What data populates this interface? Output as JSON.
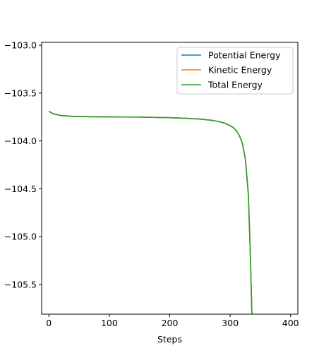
{
  "chart_data": {
    "type": "line",
    "title": "",
    "xlabel": "Steps",
    "ylabel": "",
    "xlim": [
      -12,
      412
    ],
    "ylim": [
      -105.81,
      -102.97
    ],
    "xticks": [
      0,
      100,
      200,
      300,
      400
    ],
    "xtick_labels": [
      "0",
      "100",
      "200",
      "300",
      "400"
    ],
    "yticks": [
      -103.0,
      -103.5,
      -104.0,
      -104.5,
      -105.0,
      -105.5
    ],
    "ytick_labels": [
      "−103.0",
      "−103.5",
      "−104.0",
      "−104.5",
      "−105.0",
      "−105.5"
    ],
    "grid": false,
    "legend_position": "top-right",
    "series": [
      {
        "name": "Potential Energy",
        "color": "#1f77b4",
        "x": [
          0,
          5,
          10,
          20,
          40,
          60,
          80,
          100,
          150,
          200,
          230,
          250,
          270,
          280,
          290,
          300,
          305,
          310,
          315,
          320,
          325,
          330,
          333,
          336
        ],
        "y": [
          -103.69,
          -103.71,
          -103.72,
          -103.735,
          -103.743,
          -103.746,
          -103.748,
          -103.749,
          -103.751,
          -103.757,
          -103.764,
          -103.772,
          -103.785,
          -103.796,
          -103.812,
          -103.84,
          -103.86,
          -103.89,
          -103.94,
          -104.02,
          -104.18,
          -104.55,
          -105.1,
          -105.81
        ]
      },
      {
        "name": "Kinetic Energy",
        "color": "#ff7f0e",
        "x": [
          0,
          5,
          10,
          20,
          40,
          60,
          80,
          100,
          150,
          200,
          230,
          250,
          270,
          280,
          290,
          300,
          305,
          310,
          315,
          320,
          325,
          330,
          333,
          336
        ],
        "y": [
          -103.69,
          -103.71,
          -103.72,
          -103.735,
          -103.743,
          -103.746,
          -103.748,
          -103.749,
          -103.751,
          -103.757,
          -103.764,
          -103.772,
          -103.785,
          -103.796,
          -103.812,
          -103.84,
          -103.86,
          -103.89,
          -103.94,
          -104.02,
          -104.18,
          -104.55,
          -105.1,
          -105.81
        ]
      },
      {
        "name": "Total Energy",
        "color": "#2ca02c",
        "x": [
          0,
          5,
          10,
          20,
          40,
          60,
          80,
          100,
          150,
          200,
          230,
          250,
          270,
          280,
          290,
          300,
          305,
          310,
          315,
          320,
          325,
          330,
          333,
          336
        ],
        "y": [
          -103.69,
          -103.71,
          -103.72,
          -103.735,
          -103.743,
          -103.746,
          -103.748,
          -103.749,
          -103.751,
          -103.757,
          -103.764,
          -103.772,
          -103.785,
          -103.796,
          -103.812,
          -103.84,
          -103.86,
          -103.89,
          -103.94,
          -104.02,
          -104.18,
          -104.55,
          -105.1,
          -105.81
        ]
      }
    ]
  }
}
